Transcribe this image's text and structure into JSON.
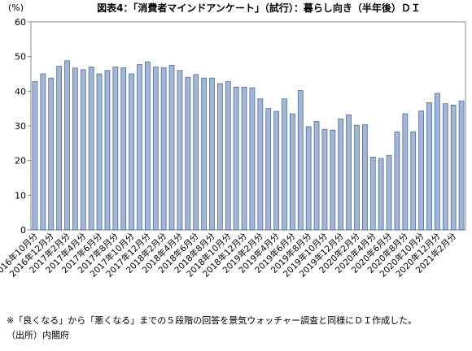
{
  "chart_data": {
    "type": "bar",
    "title": "図表4：「消費者マインドアンケート」（試行）：暮らし向き（半年後）ＤＩ",
    "y_label": "(%)",
    "categories": [
      "2016年10月分",
      null,
      "2016年12月分",
      null,
      "2017年2月分",
      null,
      "2017年4月分",
      null,
      "2017年6月分",
      null,
      "2017年8月分",
      null,
      "2017年10月分",
      null,
      "2017年12月分",
      null,
      "2018年2月分",
      null,
      "2018年4月分",
      null,
      "2018年6月分",
      null,
      "2018年8月分",
      null,
      "2018年10月分",
      null,
      "2018年12月分",
      null,
      "2019年2月分",
      null,
      "2019年4月分",
      null,
      "2019年6月分",
      null,
      "2019年8月分",
      null,
      "2019年10月分",
      null,
      "2019年12月分",
      null,
      "2020年2月分",
      null,
      "2020年4月分",
      null,
      "2020年6月分",
      null,
      "2020年8月分",
      null,
      "2020年10月分",
      null,
      "2020年12月分",
      null,
      "2021年2月分",
      null
    ],
    "values": [
      42.8,
      45.0,
      43.8,
      47.2,
      48.8,
      46.7,
      46.2,
      47.0,
      45.0,
      46.0,
      47.0,
      46.8,
      45.0,
      47.7,
      48.5,
      47.0,
      46.8,
      47.5,
      46.0,
      44.0,
      44.8,
      43.8,
      43.8,
      42.2,
      42.8,
      41.2,
      41.2,
      41.0,
      37.8,
      35.0,
      34.2,
      37.8,
      33.5,
      40.2,
      29.8,
      31.3,
      29.0,
      28.8,
      32.0,
      33.2,
      30.2,
      30.4,
      21.0,
      20.6,
      21.5,
      28.3,
      33.5,
      28.3,
      34.3,
      36.7,
      39.4,
      36.4,
      36.0,
      37.2
    ],
    "color": "#a3b6d4",
    "ylim": [
      0,
      60
    ],
    "yticks": [
      0,
      10,
      20,
      30,
      40,
      50,
      60
    ],
    "notes": [
      "※「良くなる」から「悪くなる」までの５段階の回答を景気ウォッチャー調査と同様にＤＩ作成した。",
      "（出所）内閣府"
    ]
  }
}
